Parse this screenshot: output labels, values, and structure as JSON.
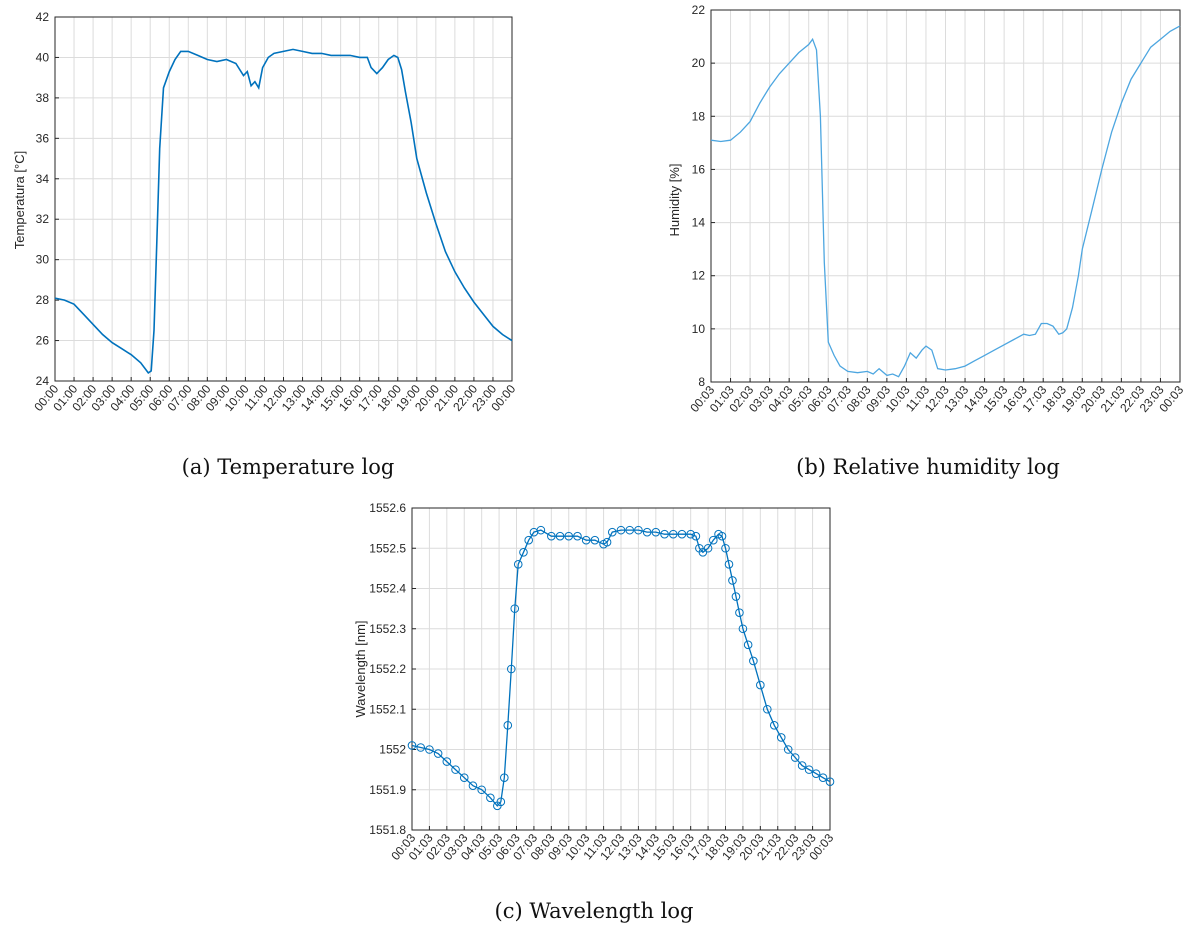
{
  "colors": {
    "series": "#0072BD",
    "humidity": "#4DA6E0",
    "grid": "#dcdcdc",
    "axis": "#262626"
  },
  "chart_data": [
    {
      "id": "temperature",
      "type": "line",
      "caption": "(a) Temperature log",
      "xlabel": "",
      "ylabel": "Temperatura [°C]",
      "ylim": [
        24,
        42
      ],
      "yticks": [
        24,
        26,
        28,
        30,
        32,
        34,
        36,
        38,
        40,
        42
      ],
      "xlim": [
        0,
        24
      ],
      "xticklabels": [
        "00:00",
        "01:00",
        "02:00",
        "03:00",
        "04:00",
        "05:00",
        "06:00",
        "07:00",
        "08:00",
        "09:00",
        "10:00",
        "11:00",
        "12:00",
        "13:00",
        "14:00",
        "15:00",
        "16:00",
        "17:00",
        "18:00",
        "19:00",
        "20:00",
        "21:00",
        "22:00",
        "23:00",
        "00:00"
      ],
      "grid": true,
      "series": [
        {
          "x": [
            0,
            0.5,
            1,
            1.5,
            2,
            2.5,
            3,
            3.5,
            4,
            4.5,
            4.9,
            5.05,
            5.2,
            5.35,
            5.5,
            5.7,
            6,
            6.3,
            6.6,
            7,
            7.5,
            8,
            8.5,
            9,
            9.5,
            9.9,
            10.1,
            10.3,
            10.5,
            10.7,
            10.9,
            11.2,
            11.5,
            12,
            12.5,
            13,
            13.5,
            14,
            14.5,
            15,
            15.5,
            16,
            16.4,
            16.6,
            16.9,
            17.2,
            17.5,
            17.8,
            18,
            18.2,
            18.4,
            18.7,
            19,
            19.5,
            20,
            20.5,
            21,
            21.5,
            22,
            22.5,
            23,
            23.5,
            24
          ],
          "y": [
            28.1,
            28.0,
            27.8,
            27.3,
            26.8,
            26.3,
            25.9,
            25.6,
            25.3,
            24.9,
            24.4,
            24.5,
            26.5,
            31,
            35.5,
            38.5,
            39.3,
            39.9,
            40.3,
            40.3,
            40.1,
            39.9,
            39.8,
            39.9,
            39.7,
            39.1,
            39.3,
            38.6,
            38.8,
            38.5,
            39.5,
            40.0,
            40.2,
            40.3,
            40.4,
            40.3,
            40.2,
            40.2,
            40.1,
            40.1,
            40.1,
            40.0,
            40.0,
            39.5,
            39.2,
            39.5,
            39.9,
            40.1,
            40.0,
            39.4,
            38.3,
            36.8,
            35.0,
            33.3,
            31.8,
            30.4,
            29.4,
            28.6,
            27.9,
            27.3,
            26.7,
            26.3,
            26.0
          ]
        }
      ]
    },
    {
      "id": "humidity",
      "type": "line",
      "caption": "(b) Relative humidity log",
      "xlabel": "",
      "ylabel": "Humidity [%]",
      "ylim": [
        8,
        22
      ],
      "yticks": [
        8,
        10,
        12,
        14,
        16,
        18,
        20,
        22
      ],
      "xlim": [
        0,
        24
      ],
      "xticklabels": [
        "00:03",
        "01:03",
        "02:03",
        "03:03",
        "04:03",
        "05:03",
        "06:03",
        "07:03",
        "08:03",
        "09:03",
        "10:03",
        "11:03",
        "12:03",
        "13:03",
        "14:03",
        "15:03",
        "16:03",
        "17:03",
        "18:03",
        "19:03",
        "20:03",
        "21:03",
        "22:03",
        "23:03",
        "00:03"
      ],
      "grid": true,
      "series": [
        {
          "x": [
            0,
            0.5,
            1,
            1.5,
            2,
            2.5,
            3,
            3.5,
            4,
            4.5,
            5,
            5.2,
            5.4,
            5.6,
            5.8,
            6,
            6.3,
            6.6,
            7,
            7.5,
            8,
            8.3,
            8.6,
            9,
            9.3,
            9.6,
            9.9,
            10.2,
            10.5,
            10.8,
            11,
            11.3,
            11.6,
            12,
            12.5,
            13,
            13.5,
            14,
            14.5,
            15,
            15.5,
            16,
            16.3,
            16.6,
            16.9,
            17.2,
            17.5,
            17.8,
            18,
            18.2,
            18.5,
            18.8,
            19,
            19.5,
            20,
            20.5,
            21,
            21.5,
            22,
            22.5,
            23,
            23.5,
            24
          ],
          "y": [
            17.1,
            17.05,
            17.1,
            17.4,
            17.8,
            18.5,
            19.1,
            19.6,
            20.0,
            20.4,
            20.7,
            20.9,
            20.5,
            18.0,
            12.5,
            9.5,
            9.0,
            8.6,
            8.4,
            8.35,
            8.4,
            8.3,
            8.5,
            8.25,
            8.3,
            8.2,
            8.6,
            9.1,
            8.9,
            9.2,
            9.35,
            9.2,
            8.5,
            8.45,
            8.5,
            8.6,
            8.8,
            9.0,
            9.2,
            9.4,
            9.6,
            9.8,
            9.75,
            9.8,
            10.2,
            10.2,
            10.1,
            9.8,
            9.85,
            10.0,
            10.8,
            12.0,
            13.0,
            14.5,
            16.0,
            17.4,
            18.5,
            19.4,
            20.0,
            20.6,
            20.9,
            21.2,
            21.4
          ]
        }
      ]
    },
    {
      "id": "wavelength",
      "type": "line",
      "caption": "(c) Wavelength log",
      "xlabel": "",
      "ylabel": "Wavelength [nm]",
      "ylim": [
        1551.8,
        1552.6
      ],
      "yticks": [
        1551.8,
        1551.9,
        1552,
        1552.1,
        1552.2,
        1552.3,
        1552.4,
        1552.5,
        1552.6
      ],
      "yticklabels": [
        "1551.8",
        "1551.9",
        "1552",
        "1552.1",
        "1552.2",
        "1552.3",
        "1552.4",
        "1552.5",
        "1552.6"
      ],
      "xlim": [
        0,
        24
      ],
      "xticklabels": [
        "00:03",
        "01:03",
        "02:03",
        "03:03",
        "04:03",
        "05:03",
        "06:03",
        "07:03",
        "08:03",
        "09:03",
        "10:03",
        "11:03",
        "12:03",
        "13:03",
        "14:03",
        "15:03",
        "16:03",
        "17:03",
        "18:03",
        "19:03",
        "20:03",
        "21:03",
        "22:03",
        "23:03",
        "00:03"
      ],
      "grid": true,
      "marker": "circle",
      "series": [
        {
          "x": [
            0,
            0.5,
            1,
            1.5,
            2,
            2.5,
            3,
            3.5,
            4,
            4.5,
            4.9,
            5.1,
            5.3,
            5.5,
            5.7,
            5.9,
            6.1,
            6.4,
            6.7,
            7,
            7.4,
            8,
            8.5,
            9,
            9.5,
            10,
            10.5,
            11,
            11.2,
            11.5,
            12,
            12.5,
            13,
            13.5,
            14,
            14.5,
            15,
            15.5,
            16,
            16.3,
            16.5,
            16.7,
            17,
            17.3,
            17.6,
            17.8,
            18,
            18.2,
            18.4,
            18.6,
            18.8,
            19,
            19.3,
            19.6,
            20,
            20.4,
            20.8,
            21.2,
            21.6,
            22,
            22.4,
            22.8,
            23.2,
            23.6,
            24
          ],
          "y": [
            1552.01,
            1552.005,
            1552.0,
            1551.99,
            1551.97,
            1551.95,
            1551.93,
            1551.91,
            1551.9,
            1551.88,
            1551.86,
            1551.87,
            1551.93,
            1552.06,
            1552.2,
            1552.35,
            1552.46,
            1552.49,
            1552.52,
            1552.54,
            1552.545,
            1552.53,
            1552.53,
            1552.53,
            1552.53,
            1552.52,
            1552.52,
            1552.51,
            1552.515,
            1552.54,
            1552.545,
            1552.545,
            1552.545,
            1552.54,
            1552.54,
            1552.535,
            1552.535,
            1552.535,
            1552.535,
            1552.53,
            1552.5,
            1552.49,
            1552.5,
            1552.52,
            1552.535,
            1552.53,
            1552.5,
            1552.46,
            1552.42,
            1552.38,
            1552.34,
            1552.3,
            1552.26,
            1552.22,
            1552.16,
            1552.1,
            1552.06,
            1552.03,
            1552.0,
            1551.98,
            1551.96,
            1551.95,
            1551.94,
            1551.93,
            1551.92
          ]
        }
      ]
    }
  ]
}
